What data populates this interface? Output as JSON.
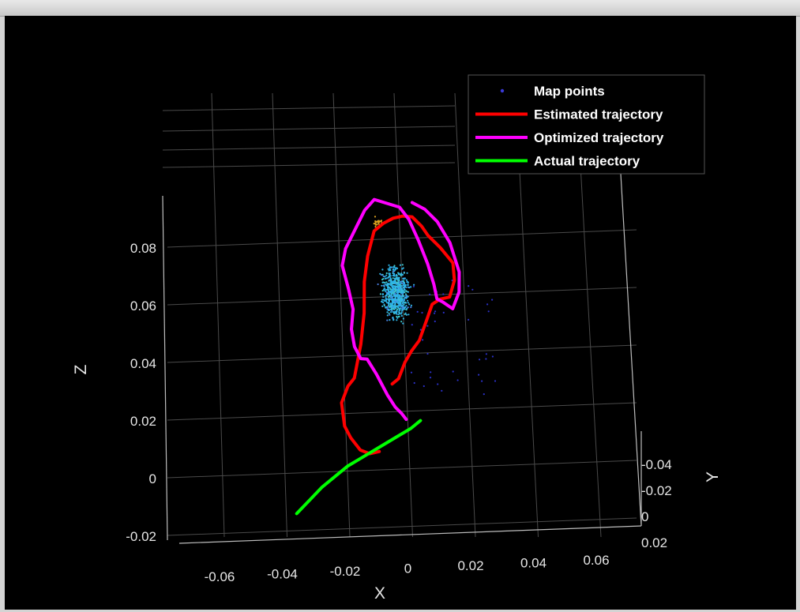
{
  "chart_data": {
    "type": "scatter",
    "view": "3d",
    "axes": {
      "x": {
        "label": "X",
        "ticks": [
          "-0.06",
          "-0.04",
          "-0.02",
          "0",
          "0.02",
          "0.04",
          "0.06"
        ],
        "lim": [
          -0.075,
          0.075
        ]
      },
      "y": {
        "label": "Y",
        "ticks": [
          "-0.04",
          "-0.02",
          "0",
          "0.02"
        ],
        "lim": [
          -0.05,
          0.02
        ]
      },
      "z": {
        "label": "Z",
        "ticks": [
          "-0.02",
          "0",
          "0.02",
          "0.04",
          "0.06",
          "0.08"
        ],
        "lim": [
          -0.02,
          0.1
        ]
      }
    },
    "grid": true,
    "background": "#000000",
    "legend": {
      "placement": "top-right",
      "entries": [
        {
          "label": "Map points",
          "color": "#3a3ad8",
          "marker": "dot"
        },
        {
          "label": "Estimated trajectory",
          "color": "#ff0000",
          "marker": "line"
        },
        {
          "label": "Optimized trajectory",
          "color": "#ff00ff",
          "marker": "line"
        },
        {
          "label": "Actual trajectory",
          "color": "#00ff00",
          "marker": "line"
        }
      ]
    },
    "series": [
      {
        "name": "Estimated trajectory",
        "color": "#ff0000",
        "x": [
          -0.012,
          -0.008,
          -0.004,
          0.0,
          0.005,
          0.01,
          0.013,
          0.018,
          0.024,
          0.027,
          0.026,
          0.018,
          0.01,
          0.006,
          0.0,
          -0.006,
          -0.012,
          -0.018,
          -0.024,
          -0.028,
          -0.03,
          -0.03,
          -0.032,
          -0.036,
          -0.04,
          -0.044,
          -0.042,
          -0.038,
          -0.032,
          -0.026,
          -0.02
        ],
        "z": [
          0.032,
          0.034,
          0.04,
          0.044,
          0.048,
          0.056,
          0.061,
          0.063,
          0.064,
          0.07,
          0.076,
          0.081,
          0.085,
          0.088,
          0.091,
          0.091,
          0.09,
          0.088,
          0.085,
          0.076,
          0.067,
          0.056,
          0.045,
          0.033,
          0.03,
          0.024,
          0.016,
          0.012,
          0.008,
          0.007,
          0.008
        ]
      },
      {
        "name": "Optimized trajectory",
        "color": "#ff00ff",
        "x": [
          -0.003,
          -0.006,
          -0.01,
          -0.015,
          -0.022,
          -0.028,
          -0.032,
          -0.036,
          -0.038,
          -0.037,
          -0.04,
          -0.044,
          -0.042,
          -0.036,
          -0.03,
          -0.024,
          -0.016,
          -0.008,
          -0.002,
          0.004,
          0.01,
          0.014,
          0.016,
          0.02,
          0.026,
          0.03,
          0.03,
          0.024,
          0.016,
          0.008,
          0.0
        ],
        "z": [
          0.02,
          0.022,
          0.024,
          0.028,
          0.035,
          0.04,
          0.04,
          0.044,
          0.05,
          0.057,
          0.064,
          0.072,
          0.078,
          0.085,
          0.092,
          0.096,
          0.095,
          0.094,
          0.09,
          0.083,
          0.075,
          0.068,
          0.063,
          0.062,
          0.06,
          0.066,
          0.073,
          0.083,
          0.09,
          0.094,
          0.096
        ]
      },
      {
        "name": "Actual trajectory",
        "color": "#00ff00",
        "x": [
          -0.072,
          -0.064,
          -0.056,
          -0.048,
          -0.04,
          -0.032,
          -0.024,
          -0.016,
          -0.008,
          0.0,
          0.006
        ],
        "z": [
          -0.016,
          -0.011,
          -0.006,
          -0.002,
          0.002,
          0.005,
          0.008,
          0.011,
          0.014,
          0.017,
          0.02
        ]
      }
    ],
    "points_summary": {
      "name": "Map points",
      "main_cluster": {
        "x_center": -0.01,
        "z_center": 0.064,
        "color": "#2fb4e8"
      },
      "upper_cluster": {
        "x_center": -0.022,
        "z_center": 0.088,
        "color": "#d9a020"
      },
      "sparse_points": {
        "color": "#2a30c8"
      }
    }
  }
}
